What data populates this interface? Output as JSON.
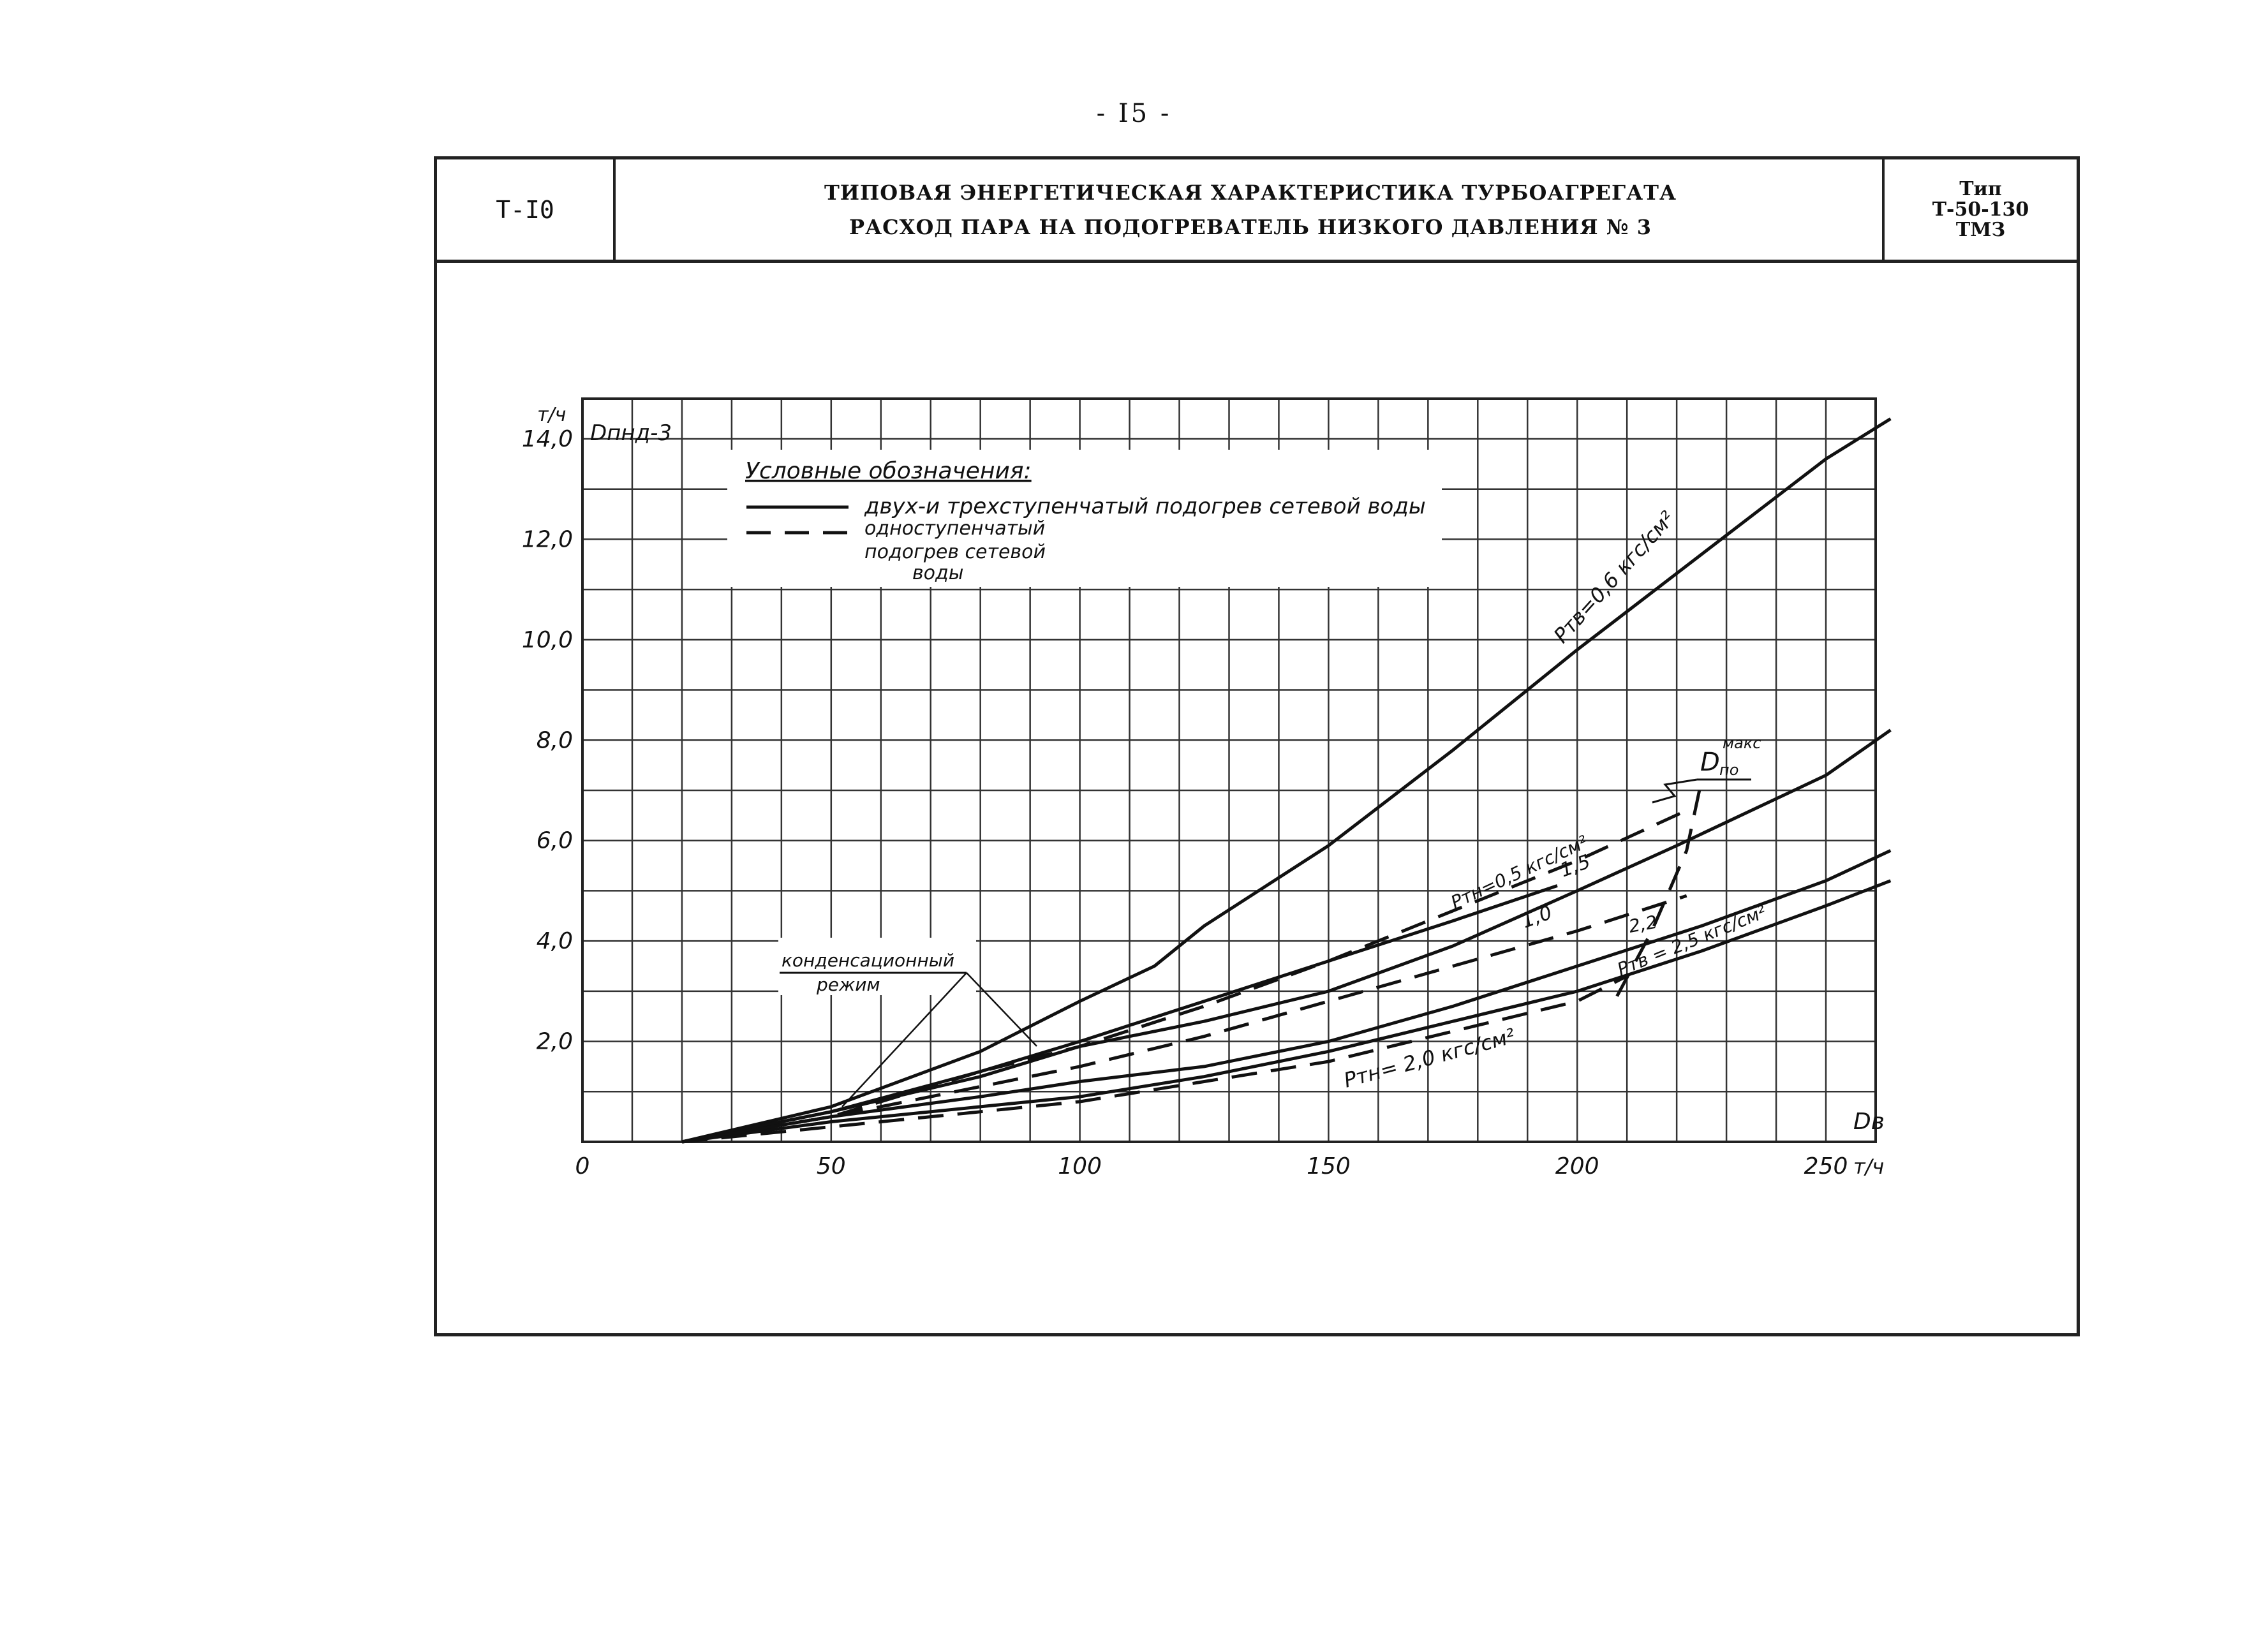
{
  "page_number": "- I5 -",
  "header": {
    "code": "Т-I0",
    "title_line1": "ТИПОВАЯ ЭНЕРГЕТИЧЕСКАЯ ХАРАКТЕРИСТИКА ТУРБОАГРЕГАТА",
    "title_line2": "РАСХОД ПАРА НА ПОДОГРЕВАТЕЛЬ НИЗКОГО ДАВЛЕНИЯ № 3",
    "type_label": "Тип",
    "type_model": "Т-50-130",
    "type_maker": "ТМЗ"
  },
  "legend": {
    "title": "Условные обозначения:",
    "solid_label": "двух-и трехступенчатый подогрев сетевой воды",
    "dashed_label_1": "одноступенчатый",
    "dashed_label_2": "подогрев сетевой",
    "dashed_label_3": "воды"
  },
  "annotations": {
    "condensing_1": "конденсационный",
    "condensing_2": "режим",
    "dpo_max": "D",
    "dpo_max_sub": "по",
    "dpo_max_sup": "макс",
    "ptv_06": "Pтв=0,6 кгс/см²",
    "ptn_05": "Pтн=0,5 кгс/см²",
    "label_15": "1,5",
    "label_10": "1,0",
    "label_22": "2,2",
    "ptv_25": "Pтв = 2,5 кгс/см²",
    "ptn_20": "Pтн= 2,0 кгс/см²"
  },
  "chart_data": {
    "type": "line",
    "ylabel": "Dпнд-3",
    "yunit": "т/ч",
    "xlabel": "Dв",
    "xunit": "т/ч",
    "xlim": [
      0,
      260
    ],
    "ylim": [
      0,
      14.8
    ],
    "x_ticks": [
      "0",
      "50",
      "100",
      "150",
      "200",
      "250"
    ],
    "x_tick_values": [
      0,
      50,
      100,
      150,
      200,
      250
    ],
    "y_ticks": [
      "2,0",
      "4,0",
      "6,0",
      "8,0",
      "10,0",
      "12,0",
      "14,0"
    ],
    "y_tick_values": [
      2,
      4,
      6,
      8,
      10,
      12,
      14
    ],
    "grid": true,
    "series": [
      {
        "name": "Pтв=0,6 кгс/см²",
        "style": "solid",
        "x": [
          20,
          50,
          80,
          100,
          115,
          125,
          150,
          175,
          200,
          225,
          250,
          263
        ],
        "y": [
          0,
          0.7,
          1.8,
          2.8,
          3.5,
          4.3,
          5.9,
          7.8,
          9.8,
          11.7,
          13.6,
          14.4
        ]
      },
      {
        "name": "1,5",
        "style": "solid",
        "x": [
          20,
          50,
          80,
          100,
          125,
          150,
          175,
          200,
          220,
          250,
          263
        ],
        "y": [
          0,
          0.6,
          1.3,
          1.9,
          2.4,
          3.0,
          3.9,
          5.0,
          5.9,
          7.3,
          8.2
        ]
      },
      {
        "name": "Pтн=0,5 кгс/см²",
        "style": "solid",
        "x": [
          20,
          50,
          80,
          100,
          125,
          150,
          175,
          196
        ],
        "y": [
          0,
          0.6,
          1.4,
          2.0,
          2.8,
          3.6,
          4.4,
          5.1
        ]
      },
      {
        "name": "2,2",
        "style": "solid",
        "x": [
          20,
          50,
          80,
          100,
          125,
          150,
          175,
          200,
          225,
          250,
          263
        ],
        "y": [
          0,
          0.5,
          0.9,
          1.2,
          1.5,
          2.0,
          2.7,
          3.5,
          4.3,
          5.2,
          5.8
        ]
      },
      {
        "name": "Pтв = 2,5 кгс/см²",
        "style": "solid",
        "x": [
          20,
          50,
          80,
          100,
          125,
          150,
          175,
          200,
          225,
          250,
          263
        ],
        "y": [
          0,
          0.4,
          0.7,
          0.9,
          1.3,
          1.8,
          2.4,
          3.0,
          3.8,
          4.7,
          5.2
        ]
      },
      {
        "name": "Pтн=0,5 кгс/см² (одноступенчатый)",
        "style": "dashed",
        "x": [
          20,
          50,
          80,
          100,
          125,
          150,
          175,
          200,
          222
        ],
        "y": [
          0,
          0.5,
          1.4,
          1.9,
          2.7,
          3.6,
          4.6,
          5.6,
          6.6
        ]
      },
      {
        "name": "1,0",
        "style": "dashed",
        "x": [
          20,
          50,
          80,
          100,
          125,
          150,
          175,
          200,
          222
        ],
        "y": [
          0,
          0.5,
          1.1,
          1.5,
          2.1,
          2.8,
          3.5,
          4.2,
          4.9
        ]
      },
      {
        "name": "Pтн= 2,0 кгс/см²",
        "style": "dashed",
        "x": [
          20,
          50,
          80,
          100,
          125,
          150,
          175,
          200,
          210
        ],
        "y": [
          0,
          0.3,
          0.6,
          0.8,
          1.2,
          1.6,
          2.2,
          2.8,
          3.3
        ]
      }
    ],
    "boundary": {
      "name": "Dпо макс",
      "style": "dashed",
      "x": [
        208,
        215,
        222,
        225
      ],
      "y": [
        2.9,
        4.2,
        5.8,
        7.2
      ]
    },
    "condensing_mode_point": {
      "x": 78,
      "y": 3.4
    }
  }
}
